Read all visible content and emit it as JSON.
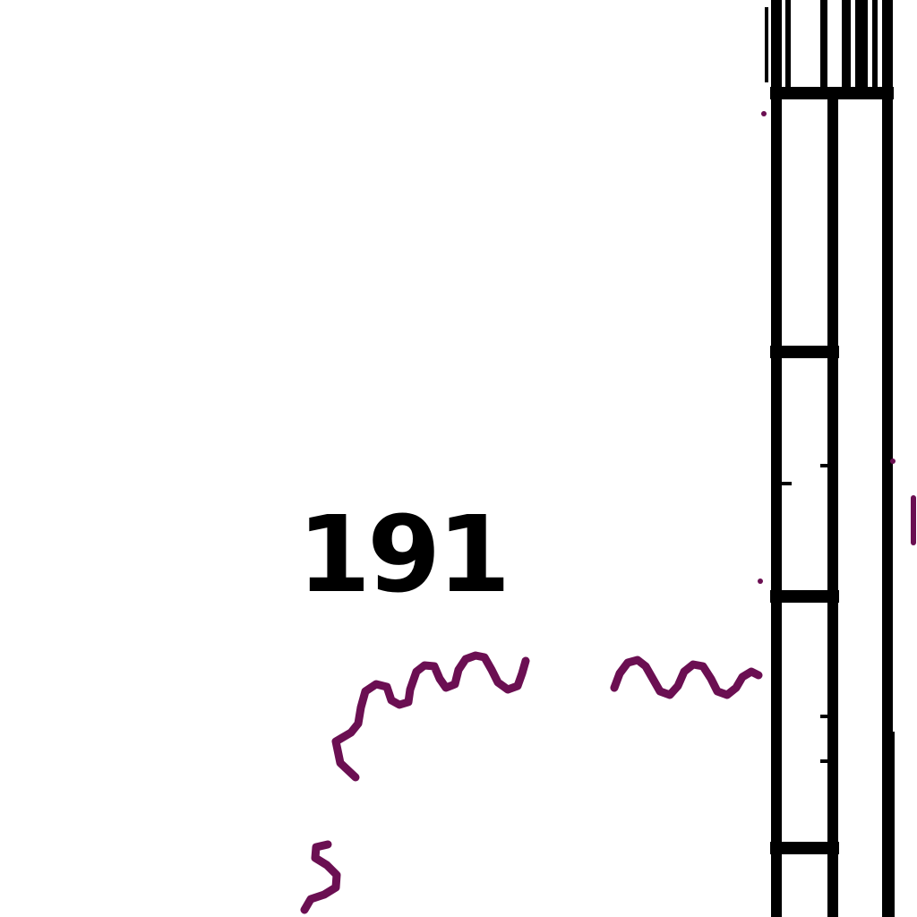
{
  "figure": {
    "reference_label": "191",
    "ink_color": "#000000",
    "annotation_color": "#6b0f52",
    "background_color": "#ffffff"
  }
}
